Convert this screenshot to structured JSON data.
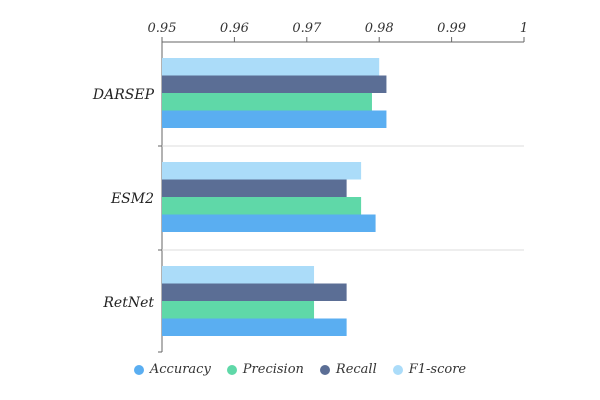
{
  "chart_data": {
    "type": "bar",
    "orientation": "horizontal",
    "categories": [
      "DARSEP",
      "ESM2",
      "RetNet"
    ],
    "series": [
      {
        "name": "Accuracy",
        "color": "#5AAEF1",
        "values": [
          0.981,
          0.9795,
          0.9755
        ]
      },
      {
        "name": "Precision",
        "color": "#5FD8A8",
        "values": [
          0.979,
          0.9775,
          0.971
        ]
      },
      {
        "name": "Recall",
        "color": "#5B6E95",
        "values": [
          0.981,
          0.9755,
          0.9755
        ]
      },
      {
        "name": "F1-score",
        "color": "#ABDCF9",
        "values": [
          0.98,
          0.9775,
          0.971
        ]
      }
    ],
    "xlim": [
      0.95,
      1
    ],
    "xticks": [
      "0.95",
      "0.96",
      "0.97",
      "0.98",
      "0.99",
      "1"
    ],
    "xaxis_position": "top",
    "title": "",
    "xlabel": "",
    "ylabel": "",
    "grid": "horizontal separators between categories",
    "legend_position": "bottom"
  }
}
